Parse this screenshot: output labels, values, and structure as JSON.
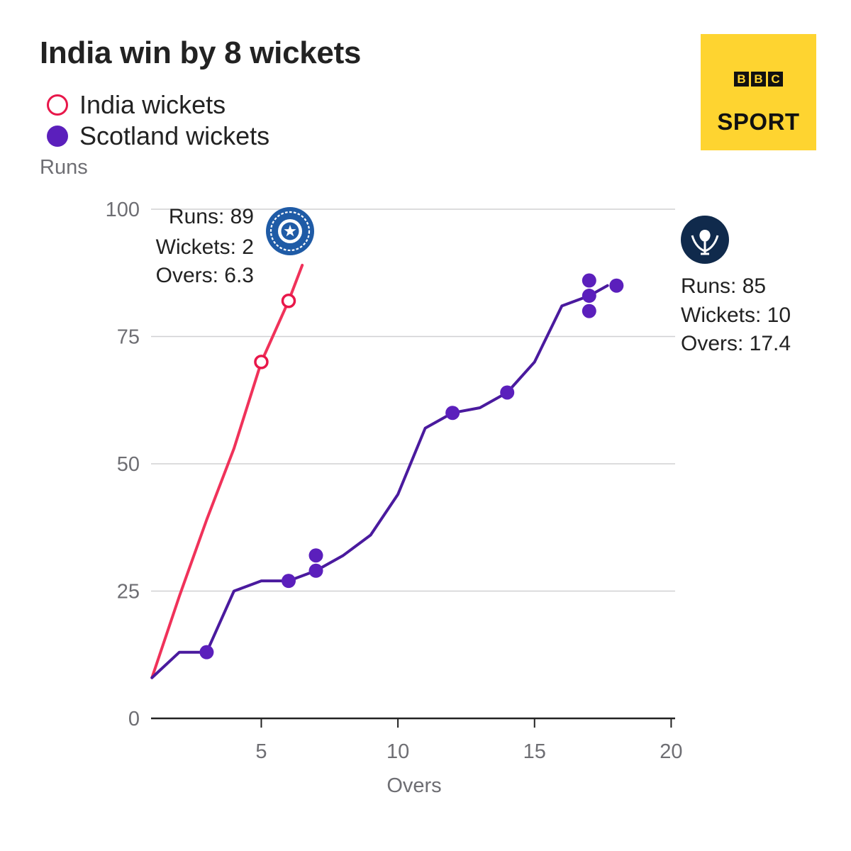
{
  "chart_data": {
    "type": "line",
    "title": "India win by 8 wickets",
    "xlabel": "Overs",
    "ylabel": "Runs",
    "xlim": [
      0,
      20
    ],
    "ylim": [
      0,
      100
    ],
    "xticks": [
      5,
      10,
      15,
      20
    ],
    "yticks": [
      0,
      25,
      50,
      75,
      100
    ],
    "grid": "horizontal",
    "legend_position": "top-left",
    "legend": [
      {
        "label": "India wickets",
        "style": "hollow-circle",
        "color": "#e8174a"
      },
      {
        "label": "Scotland wickets",
        "style": "filled-circle",
        "color": "#5b1fbc"
      }
    ],
    "series": [
      {
        "team": "India",
        "color": "#f0325a",
        "x": [
          1,
          2,
          3,
          4,
          5,
          6,
          6.5
        ],
        "y": [
          8,
          24,
          39,
          53,
          70,
          82,
          89
        ],
        "wickets": [
          {
            "x": 5,
            "y": 70
          },
          {
            "x": 6,
            "y": 82
          }
        ],
        "summary": {
          "runs": "Runs: 89",
          "wickets": "Wickets: 2",
          "overs": "Overs: 6.3"
        }
      },
      {
        "team": "Scotland",
        "color": "#4a1a9e",
        "x": [
          1,
          2,
          3,
          4,
          5,
          6,
          7,
          8,
          9,
          10,
          11,
          12,
          13,
          14,
          15,
          16,
          17,
          17.67
        ],
        "y": [
          8,
          13,
          13,
          25,
          27,
          27,
          29,
          32,
          36,
          44,
          57,
          60,
          61,
          64,
          70,
          81,
          83,
          85
        ],
        "wickets": [
          {
            "x": 3,
            "y": 13
          },
          {
            "x": 6,
            "y": 27
          },
          {
            "x": 7,
            "y": 29
          },
          {
            "x": 7,
            "y": 32
          },
          {
            "x": 12,
            "y": 60
          },
          {
            "x": 14,
            "y": 64
          },
          {
            "x": 17,
            "y": 80
          },
          {
            "x": 17,
            "y": 83
          },
          {
            "x": 17,
            "y": 86
          },
          {
            "x": 18,
            "y": 85
          }
        ],
        "summary": {
          "runs": "Runs: 85",
          "wickets": "Wickets: 10",
          "overs": "Overs: 17.4"
        }
      }
    ]
  },
  "branding": {
    "bbc_letters": [
      "B",
      "B",
      "C"
    ],
    "sport": "SPORT"
  }
}
